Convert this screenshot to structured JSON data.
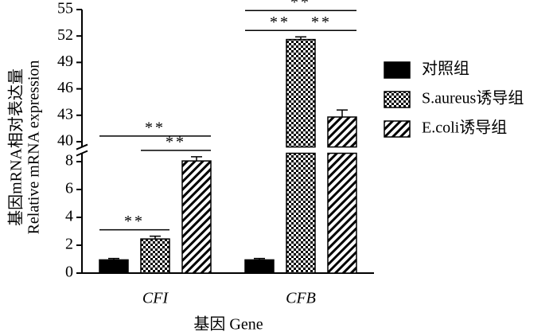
{
  "chart_data": {
    "type": "bar",
    "ylabel": [
      "基因mRNA相对表达量",
      "Relative mRNA expression"
    ],
    "xlabel": "基因  Gene",
    "categories": [
      "CFI",
      "CFB"
    ],
    "series": [
      {
        "name": "对照组",
        "color": "#000000",
        "pattern": "solid",
        "values": [
          0.95,
          0.95
        ],
        "errors": [
          0.1,
          0.1
        ]
      },
      {
        "name": "S.aureus诱导组",
        "color": "#000000",
        "pattern": "checker",
        "values": [
          2.45,
          51.6
        ],
        "errors": [
          0.2,
          0.3
        ]
      },
      {
        "name": "E.coli诱导组",
        "color": "#000000",
        "pattern": "hatch",
        "values": [
          8.05,
          42.8
        ],
        "errors": [
          0.3,
          0.8
        ]
      }
    ],
    "segments": [
      {
        "ylim": [
          0,
          8.6
        ],
        "yticks": [
          0,
          2,
          4,
          6,
          8
        ]
      },
      {
        "ylim": [
          39.4,
          55
        ],
        "yticks": [
          40,
          43,
          46,
          49,
          52,
          55
        ]
      }
    ],
    "significance": [
      {
        "category": 0,
        "series": [
          0,
          1
        ],
        "label": "**"
      },
      {
        "category": 0,
        "series": [
          1,
          2
        ],
        "label": "**"
      },
      {
        "category": 0,
        "series": [
          0,
          2
        ],
        "label": "**"
      },
      {
        "category": 1,
        "series": [
          0,
          1
        ],
        "label": "**"
      },
      {
        "category": 1,
        "series": [
          1,
          2
        ],
        "label": "**"
      },
      {
        "category": 1,
        "series": [
          0,
          2
        ],
        "label": "**"
      }
    ]
  }
}
